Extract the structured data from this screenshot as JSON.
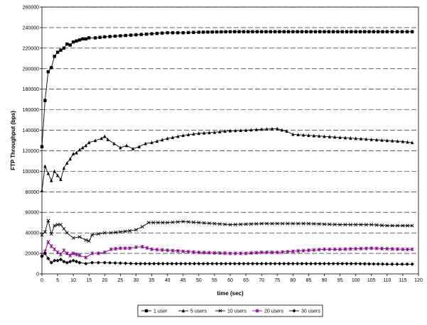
{
  "chart_data": {
    "type": "line",
    "xlabel": "time (sec)",
    "ylabel": "FTP Throughput (bps)",
    "xlim": [
      0,
      120
    ],
    "ylim": [
      0,
      260000
    ],
    "x_ticks": [
      0,
      5,
      10,
      15,
      20,
      25,
      30,
      35,
      40,
      45,
      50,
      55,
      60,
      65,
      70,
      75,
      80,
      85,
      90,
      95,
      100,
      105,
      110,
      115,
      120
    ],
    "y_ticks": [
      0,
      20000,
      40000,
      60000,
      80000,
      100000,
      120000,
      140000,
      160000,
      180000,
      200000,
      220000,
      240000,
      260000
    ],
    "grid": "horizontal dashed",
    "legend_position": "bottom",
    "series": [
      {
        "name": "1 user",
        "marker": "square",
        "color": "#000000",
        "points": [
          [
            0,
            124000
          ],
          [
            1,
            169000
          ],
          [
            2,
            197000
          ],
          [
            3,
            201000
          ],
          [
            4,
            212000
          ],
          [
            5,
            216000
          ],
          [
            6,
            218000
          ],
          [
            7,
            220000
          ],
          [
            8,
            224000
          ],
          [
            9,
            223000
          ],
          [
            10,
            226000
          ],
          [
            11,
            227000
          ],
          [
            12,
            228000
          ],
          [
            13,
            229000
          ],
          [
            14,
            229000
          ],
          [
            15,
            230000
          ],
          [
            17,
            230000
          ],
          [
            20,
            231000
          ],
          [
            25,
            232000
          ],
          [
            30,
            233000
          ],
          [
            35,
            234000
          ],
          [
            40,
            235000
          ],
          [
            45,
            235000
          ],
          [
            50,
            235500
          ],
          [
            60,
            236000
          ],
          [
            70,
            236000
          ],
          [
            80,
            236000
          ],
          [
            90,
            236000
          ],
          [
            100,
            236000
          ],
          [
            110,
            236000
          ],
          [
            118,
            236000
          ]
        ]
      },
      {
        "name": "5 users",
        "marker": "triangle",
        "color": "#000000",
        "points": [
          [
            0,
            81000
          ],
          [
            1,
            105000
          ],
          [
            2,
            98000
          ],
          [
            3,
            91000
          ],
          [
            4,
            100000
          ],
          [
            5,
            96000
          ],
          [
            6,
            92000
          ],
          [
            7,
            103000
          ],
          [
            8,
            108000
          ],
          [
            9,
            112000
          ],
          [
            10,
            117000
          ],
          [
            11,
            118000
          ],
          [
            12,
            121000
          ],
          [
            13,
            123000
          ],
          [
            14,
            125000
          ],
          [
            15,
            128000
          ],
          [
            17,
            130000
          ],
          [
            19,
            132000
          ],
          [
            20,
            134000
          ],
          [
            21,
            131000
          ],
          [
            23,
            127000
          ],
          [
            25,
            123000
          ],
          [
            27,
            125000
          ],
          [
            29,
            122000
          ],
          [
            31,
            124000
          ],
          [
            33,
            127000
          ],
          [
            35,
            128000
          ],
          [
            40,
            132000
          ],
          [
            45,
            135000
          ],
          [
            50,
            137000
          ],
          [
            55,
            138000
          ],
          [
            60,
            139500
          ],
          [
            65,
            140000
          ],
          [
            70,
            141000
          ],
          [
            75,
            141500
          ],
          [
            78,
            139000
          ],
          [
            80,
            136000
          ],
          [
            85,
            135000
          ],
          [
            90,
            134000
          ],
          [
            95,
            133000
          ],
          [
            100,
            132000
          ],
          [
            105,
            131000
          ],
          [
            110,
            130000
          ],
          [
            115,
            129000
          ],
          [
            118,
            128000
          ]
        ]
      },
      {
        "name": "10 users",
        "marker": "x",
        "color": "#000000",
        "points": [
          [
            0,
            38000
          ],
          [
            1,
            41000
          ],
          [
            2,
            52000
          ],
          [
            3,
            39000
          ],
          [
            4,
            47000
          ],
          [
            5,
            48000
          ],
          [
            6,
            48000
          ],
          [
            7,
            44000
          ],
          [
            8,
            40000
          ],
          [
            10,
            35000
          ],
          [
            12,
            36000
          ],
          [
            14,
            33000
          ],
          [
            15,
            32000
          ],
          [
            16,
            38000
          ],
          [
            18,
            39000
          ],
          [
            20,
            40000
          ],
          [
            22,
            40000
          ],
          [
            25,
            41000
          ],
          [
            28,
            42000
          ],
          [
            30,
            43000
          ],
          [
            32,
            46000
          ],
          [
            34,
            50000
          ],
          [
            37,
            50000
          ],
          [
            40,
            50000
          ],
          [
            45,
            51000
          ],
          [
            50,
            50000
          ],
          [
            55,
            49000
          ],
          [
            60,
            48000
          ],
          [
            65,
            48500
          ],
          [
            70,
            49000
          ],
          [
            75,
            49000
          ],
          [
            80,
            49000
          ],
          [
            85,
            49000
          ],
          [
            90,
            48500
          ],
          [
            95,
            48000
          ],
          [
            100,
            48000
          ],
          [
            105,
            48000
          ],
          [
            110,
            47000
          ],
          [
            115,
            47000
          ],
          [
            118,
            47000
          ]
        ]
      },
      {
        "name": "20 users",
        "marker": "asterisk",
        "color": "#800080",
        "points": [
          [
            0,
            19000
          ],
          [
            1,
            22000
          ],
          [
            2,
            31000
          ],
          [
            3,
            27000
          ],
          [
            4,
            24000
          ],
          [
            5,
            21000
          ],
          [
            6,
            19000
          ],
          [
            7,
            23000
          ],
          [
            8,
            20000
          ],
          [
            9,
            18000
          ],
          [
            10,
            20000
          ],
          [
            11,
            19000
          ],
          [
            12,
            18000
          ],
          [
            14,
            16000
          ],
          [
            16,
            20000
          ],
          [
            18,
            20000
          ],
          [
            20,
            21000
          ],
          [
            22,
            24000
          ],
          [
            25,
            25000
          ],
          [
            28,
            25000
          ],
          [
            30,
            26000
          ],
          [
            32,
            26500
          ],
          [
            35,
            24000
          ],
          [
            40,
            23000
          ],
          [
            45,
            22000
          ],
          [
            50,
            21000
          ],
          [
            55,
            20500
          ],
          [
            60,
            20000
          ],
          [
            65,
            20000
          ],
          [
            70,
            21000
          ],
          [
            75,
            21000
          ],
          [
            80,
            22000
          ],
          [
            85,
            23000
          ],
          [
            90,
            24000
          ],
          [
            95,
            24000
          ],
          [
            100,
            24500
          ],
          [
            105,
            25000
          ],
          [
            110,
            24500
          ],
          [
            115,
            24000
          ],
          [
            118,
            24000
          ]
        ]
      },
      {
        "name": "30 users",
        "marker": "diamond",
        "color": "#000000",
        "points": [
          [
            0,
            17000
          ],
          [
            1,
            20000
          ],
          [
            2,
            15000
          ],
          [
            3,
            11000
          ],
          [
            4,
            13000
          ],
          [
            5,
            13000
          ],
          [
            6,
            14000
          ],
          [
            7,
            12000
          ],
          [
            8,
            11000
          ],
          [
            9,
            12000
          ],
          [
            10,
            13000
          ],
          [
            11,
            12000
          ],
          [
            12,
            11000
          ],
          [
            14,
            10000
          ],
          [
            16,
            11000
          ],
          [
            18,
            11000
          ],
          [
            20,
            11000
          ],
          [
            25,
            10500
          ],
          [
            30,
            10000
          ],
          [
            40,
            10000
          ],
          [
            50,
            10000
          ],
          [
            60,
            10000
          ],
          [
            70,
            10000
          ],
          [
            80,
            10000
          ],
          [
            90,
            10000
          ],
          [
            100,
            10000
          ],
          [
            110,
            9500
          ],
          [
            118,
            9500
          ]
        ]
      }
    ]
  }
}
